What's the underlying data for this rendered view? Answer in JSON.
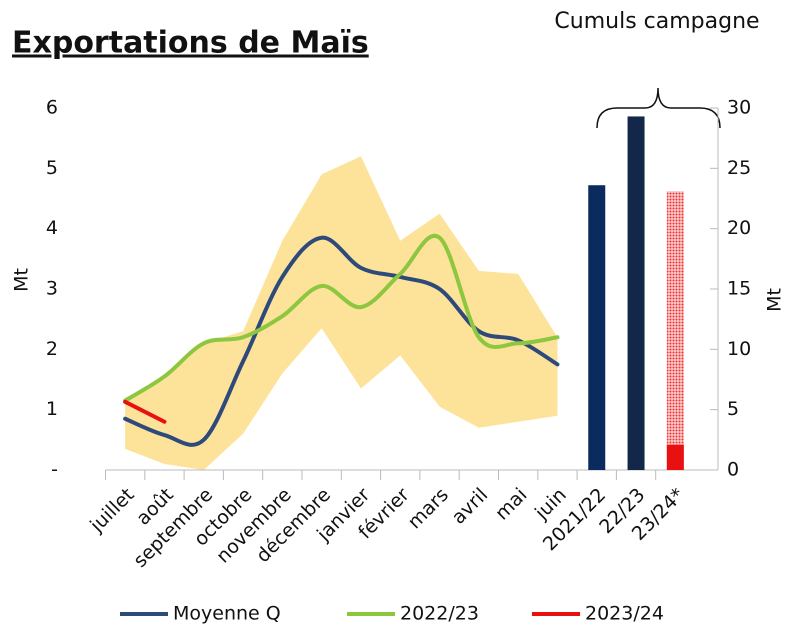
{
  "chart_data": {
    "type": "line",
    "title": "Exportations de Maïs",
    "annotation": "Cumuls campagne",
    "ylabel": "Mt",
    "y2label": "Mt",
    "categories": [
      "juillet",
      "août",
      "septembre",
      "octobre",
      "novembre",
      "décembre",
      "janvier",
      "février",
      "mars",
      "avril",
      "mai",
      "juin",
      "2021/22",
      "22/23",
      "23/24*"
    ],
    "ylim": [
      0,
      6
    ],
    "yticks": [
      {
        "value": 0,
        "label": "-"
      },
      1,
      2,
      3,
      4,
      5,
      6
    ],
    "y2lim": [
      0,
      30
    ],
    "y2ticks": [
      0,
      5,
      10,
      15,
      20,
      25,
      30
    ],
    "band": {
      "color": "#fde39a",
      "lower": [
        0.35,
        0.1,
        0.0,
        0.6,
        1.6,
        2.35,
        1.35,
        1.9,
        1.05,
        0.7,
        0.8,
        0.9,
        null,
        null,
        null
      ],
      "upper": [
        1.2,
        1.5,
        2.1,
        2.3,
        3.8,
        4.9,
        5.2,
        3.8,
        4.25,
        3.3,
        3.25,
        2.2,
        null,
        null,
        null
      ]
    },
    "series": [
      {
        "name": "Moyenne Q",
        "color": "#2e4a7a",
        "values": [
          0.85,
          0.58,
          0.5,
          1.8,
          3.2,
          3.85,
          3.35,
          3.2,
          3.0,
          2.3,
          2.15,
          1.75,
          null,
          null,
          null
        ]
      },
      {
        "name": "2022/23",
        "color": "#8dc63f",
        "values": [
          1.15,
          1.55,
          2.1,
          2.2,
          2.55,
          3.05,
          2.7,
          3.25,
          3.85,
          2.2,
          2.1,
          2.2,
          null,
          null,
          null
        ]
      },
      {
        "name": "2023/24",
        "color": "#e81010",
        "values": [
          1.13,
          0.8,
          null,
          null,
          null,
          null,
          null,
          null,
          null,
          null,
          null,
          null,
          null,
          null,
          null
        ]
      },
      {
        "type": "bar",
        "axis": "y2",
        "colors": [
          null,
          null,
          null,
          null,
          null,
          null,
          null,
          null,
          null,
          null,
          null,
          null,
          "#0b2a5e",
          "#13274a",
          "#e81010"
        ],
        "values": [
          null,
          null,
          null,
          null,
          null,
          null,
          null,
          null,
          null,
          null,
          null,
          null,
          23.6,
          29.3,
          2.1
        ]
      },
      {
        "type": "bar",
        "axis": "y2",
        "pattern": "dotted",
        "color": "#f05050",
        "values": [
          null,
          null,
          null,
          null,
          null,
          null,
          null,
          null,
          null,
          null,
          null,
          null,
          null,
          null,
          23.1
        ]
      }
    ]
  }
}
